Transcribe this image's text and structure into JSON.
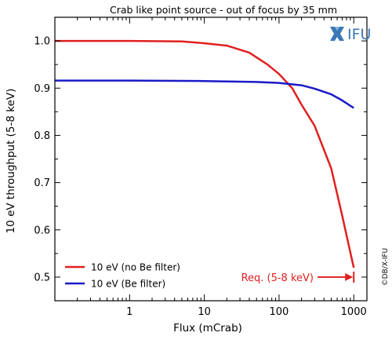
{
  "chart_data": {
    "type": "line",
    "title": "Crab like point source - out of focus by 35 mm",
    "xlabel": "Flux (mCrab)",
    "ylabel": "10 eV throughput (5-8 keV)",
    "xscale": "log",
    "xlim": [
      0.1,
      1500
    ],
    "ylim": [
      0.45,
      1.05
    ],
    "xticks": [
      1,
      10,
      100,
      1000
    ],
    "xtick_labels": [
      "1",
      "10",
      "100",
      "1000"
    ],
    "yticks": [
      0.5,
      0.6,
      0.7,
      0.8,
      0.9,
      1.0
    ],
    "ytick_labels": [
      "0.5",
      "0.6",
      "0.7",
      "0.8",
      "0.9",
      "1.0"
    ],
    "grid": false,
    "legend_position": "bottom-left",
    "series": [
      {
        "name": "10 eV (no Be filter)",
        "color": "#e02020",
        "x": [
          0.1,
          1,
          5,
          10,
          20,
          40,
          70,
          100,
          150,
          200,
          300,
          500,
          700,
          850,
          1000
        ],
        "y": [
          1.0,
          1.0,
          0.999,
          0.995,
          0.99,
          0.975,
          0.95,
          0.93,
          0.9,
          0.865,
          0.82,
          0.73,
          0.63,
          0.57,
          0.52
        ]
      },
      {
        "name": "10 eV (Be filter)",
        "color": "#1a1ac8",
        "x": [
          0.1,
          1,
          10,
          50,
          100,
          200,
          300,
          500,
          700,
          1000
        ],
        "y": [
          0.916,
          0.916,
          0.915,
          0.913,
          0.911,
          0.906,
          0.899,
          0.887,
          0.874,
          0.858
        ]
      }
    ],
    "annotations": [
      {
        "text": "Req. (5-8 keV)",
        "color": "#e02020",
        "x": 1000,
        "y": 0.5
      }
    ]
  },
  "logo_text": "IFU",
  "copyright_text": "©DB/X-IFU"
}
